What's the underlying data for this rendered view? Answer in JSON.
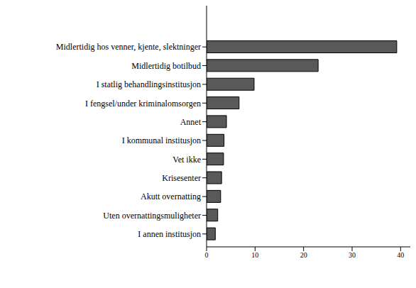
{
  "chart_data": {
    "type": "bar",
    "orientation": "horizontal",
    "categories": [
      "Midlertidig hos venner, kjente, slektninger",
      "Midlertidig botilbud",
      "I statlig behandlingsinstitusjon",
      "I fengsel/under kriminalomsorgen",
      "Annet",
      "I kommunal institusjon",
      "Vet ikke",
      "Krisesenter",
      "Akutt overnatting",
      "Uten overnattingsmuligheter",
      "I annen institusjon"
    ],
    "values": [
      39.2,
      23.0,
      9.8,
      6.7,
      4.1,
      3.6,
      3.5,
      3.1,
      2.9,
      2.3,
      1.8
    ],
    "color": "#595959",
    "xlim": [
      0,
      42
    ],
    "xticks": [
      0,
      10,
      20,
      30,
      40
    ],
    "grid": false
  }
}
